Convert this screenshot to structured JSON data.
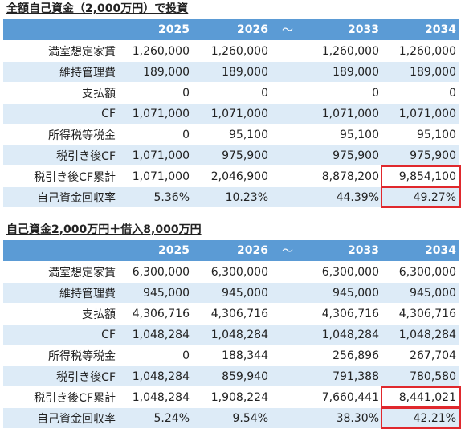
{
  "sections": [
    {
      "title": "全額自己資金（2,000万円）で投資",
      "headers": [
        "",
        "2025",
        "2026",
        "～",
        "2033",
        "2034"
      ],
      "rows": [
        {
          "label": "満室想定家賃",
          "v2025": "1,260,000",
          "v2026": "1,260,000",
          "v2033": "1,260,000",
          "v2034": "1,260,000"
        },
        {
          "label": "維持管理費",
          "v2025": "189,000",
          "v2026": "189,000",
          "v2033": "189,000",
          "v2034": "189,000"
        },
        {
          "label": "支払額",
          "v2025": "0",
          "v2026": "0",
          "v2033": "0",
          "v2034": "0"
        },
        {
          "label": "CF",
          "v2025": "1,071,000",
          "v2026": "1,071,000",
          "v2033": "1,071,000",
          "v2034": "1,071,000"
        },
        {
          "label": "所得税等税金",
          "v2025": "0",
          "v2026": "95,100",
          "v2033": "95,100",
          "v2034": "95,100"
        },
        {
          "label": "税引き後CF",
          "v2025": "1,071,000",
          "v2026": "975,900",
          "v2033": "975,900",
          "v2034": "975,900"
        },
        {
          "label": "税引き後CF累計",
          "v2025": "1,071,000",
          "v2026": "2,046,900",
          "v2033": "8,878,200",
          "v2034": "9,854,100"
        },
        {
          "label": "自己資金回収率",
          "v2025": "5.36%",
          "v2026": "10.23%",
          "v2033": "44.39%",
          "v2034": "49.27%"
        }
      ]
    },
    {
      "title": "自己資金2,000万円＋借入8,000万円",
      "headers": [
        "",
        "2025",
        "2026",
        "～",
        "2033",
        "2034"
      ],
      "rows": [
        {
          "label": "満室想定家賃",
          "v2025": "6,300,000",
          "v2026": "6,300,000",
          "v2033": "6,300,000",
          "v2034": "6,300,000"
        },
        {
          "label": "維持管理費",
          "v2025": "945,000",
          "v2026": "945,000",
          "v2033": "945,000",
          "v2034": "945,000"
        },
        {
          "label": "支払額",
          "v2025": "4,306,716",
          "v2026": "4,306,716",
          "v2033": "4,306,716",
          "v2034": "4,306,716"
        },
        {
          "label": "CF",
          "v2025": "1,048,284",
          "v2026": "1,048,284",
          "v2033": "1,048,284",
          "v2034": "1,048,284"
        },
        {
          "label": "所得税等税金",
          "v2025": "0",
          "v2026": "188,344",
          "v2033": "256,896",
          "v2034": "267,704"
        },
        {
          "label": "税引き後CF",
          "v2025": "1,048,284",
          "v2026": "859,940",
          "v2033": "791,388",
          "v2034": "780,580"
        },
        {
          "label": "税引き後CF累計",
          "v2025": "1,048,284",
          "v2026": "1,908,224",
          "v2033": "7,660,441",
          "v2034": "8,441,021"
        },
        {
          "label": "自己資金回収率",
          "v2025": "5.24%",
          "v2026": "9.54%",
          "v2033": "38.30%",
          "v2034": "42.21%"
        }
      ]
    }
  ],
  "colors": {
    "header_bg": "#5b9bd5",
    "band_bg": "#ddebf7",
    "highlight_border": "#e0282d"
  }
}
